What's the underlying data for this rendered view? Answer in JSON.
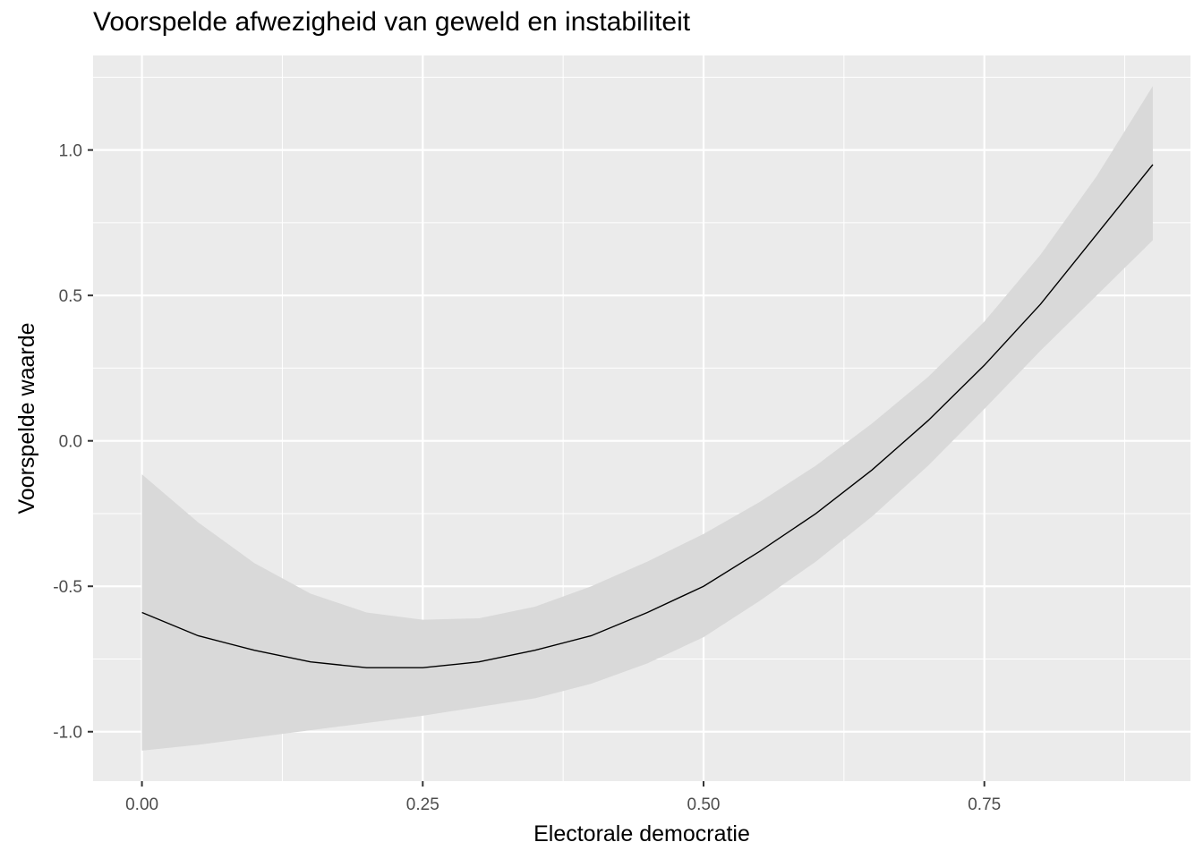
{
  "chart_data": {
    "type": "line",
    "title": "Voorspelde afwezigheid van geweld en instabiliteit",
    "xlabel": "Electorale democratie",
    "ylabel": "Voorspelde waarde",
    "xlim": [
      -0.0435,
      0.9335
    ],
    "ylim": [
      -1.17,
      1.325
    ],
    "x_ticks": [
      0.0,
      0.25,
      0.5,
      0.75
    ],
    "x_tick_labels": [
      "0.00",
      "0.25",
      "0.50",
      "0.75"
    ],
    "y_ticks": [
      -1.0,
      -0.5,
      0.0,
      0.5,
      1.0
    ],
    "y_tick_labels": [
      "-1.0",
      "-0.5",
      "0.0",
      "0.5",
      "1.0"
    ],
    "grid": true,
    "series": [
      {
        "x": [
          0.0,
          0.05,
          0.1,
          0.15,
          0.2,
          0.25,
          0.3,
          0.35,
          0.4,
          0.45,
          0.5,
          0.55,
          0.6,
          0.65,
          0.7,
          0.75,
          0.8,
          0.85,
          0.9
        ],
        "y": [
          -0.59,
          -0.67,
          -0.72,
          -0.76,
          -0.78,
          -0.78,
          -0.76,
          -0.72,
          -0.67,
          -0.59,
          -0.5,
          -0.38,
          -0.25,
          -0.1,
          0.07,
          0.26,
          0.47,
          0.71,
          0.95
        ],
        "lower": [
          -1.065,
          -1.045,
          -1.02,
          -0.995,
          -0.97,
          -0.945,
          -0.915,
          -0.885,
          -0.835,
          -0.765,
          -0.675,
          -0.55,
          -0.415,
          -0.26,
          -0.085,
          0.11,
          0.31,
          0.5,
          0.69
        ],
        "upper": [
          -0.115,
          -0.28,
          -0.42,
          -0.525,
          -0.59,
          -0.615,
          -0.61,
          -0.57,
          -0.5,
          -0.415,
          -0.32,
          -0.21,
          -0.085,
          0.06,
          0.22,
          0.41,
          0.64,
          0.91,
          1.22
        ],
        "line_color": "#000000",
        "band_color": "#d9d9d9"
      }
    ],
    "panel_color": "#ebebeb",
    "grid_color": "#ffffff"
  }
}
